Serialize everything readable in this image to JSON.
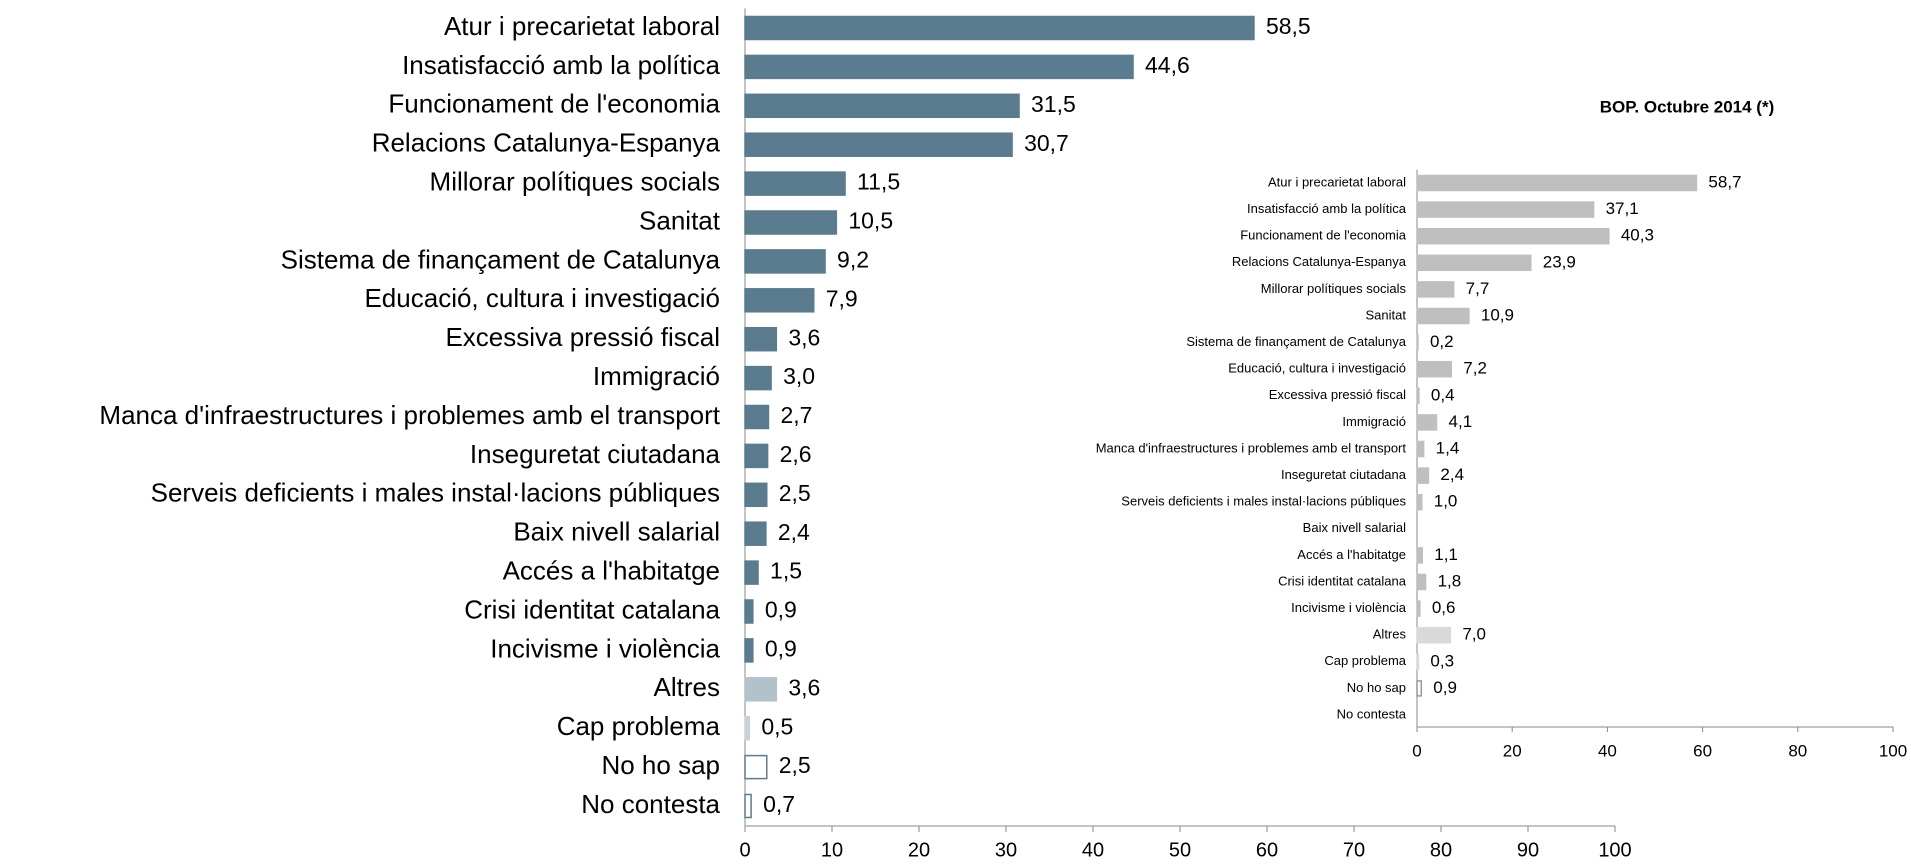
{
  "chart_data": [
    {
      "type": "bar",
      "orientation": "horizontal",
      "categories": [
        "Atur i precarietat laboral",
        "Insatisfacció amb la política",
        "Funcionament de l'economia",
        "Relacions Catalunya-Espanya",
        "Millorar polítiques socials",
        "Sanitat",
        "Sistema de finançament de Catalunya",
        "Educació, cultura i investigació",
        "Excessiva pressió fiscal",
        "Immigració",
        "Manca d'infraestructures i problemes amb el transport",
        "Inseguretat ciutadana",
        "Serveis deficients i males instal·lacions públiques",
        "Baix nivell salarial",
        "Accés a l'habitatge",
        "Crisi identitat catalana",
        "Incivisme i violència",
        "Altres",
        "Cap problema",
        "No ho sap",
        "No contesta"
      ],
      "values": [
        58.5,
        44.6,
        31.5,
        30.7,
        11.5,
        10.5,
        9.2,
        7.9,
        3.6,
        3.0,
        2.7,
        2.6,
        2.5,
        2.4,
        1.5,
        0.9,
        0.9,
        3.6,
        0.5,
        2.5,
        0.7
      ],
      "value_labels": [
        "58,5",
        "44,6",
        "31,5",
        "30,7",
        "11,5",
        "10,5",
        "9,2",
        "7,9",
        "3,6",
        "3,0",
        "2,7",
        "2,6",
        "2,5",
        "2,4",
        "1,5",
        "0,9",
        "0,9",
        "3,6",
        "0,5",
        "2,5",
        "0,7"
      ],
      "colors": [
        "#5b7b8e",
        "#5b7b8e",
        "#5b7b8e",
        "#5b7b8e",
        "#5b7b8e",
        "#5b7b8e",
        "#5b7b8e",
        "#5b7b8e",
        "#5b7b8e",
        "#5b7b8e",
        "#5b7b8e",
        "#5b7b8e",
        "#5b7b8e",
        "#5b7b8e",
        "#5b7b8e",
        "#5b7b8e",
        "#5b7b8e",
        "#b3c1cb",
        "#c9d1d7",
        "#ffffff",
        "#ffffff"
      ],
      "edge_colors": [
        "#5b7b8e",
        "#5b7b8e",
        "#5b7b8e",
        "#5b7b8e",
        "#5b7b8e",
        "#5b7b8e",
        "#5b7b8e",
        "#5b7b8e",
        "#5b7b8e",
        "#5b7b8e",
        "#5b7b8e",
        "#5b7b8e",
        "#5b7b8e",
        "#5b7b8e",
        "#5b7b8e",
        "#5b7b8e",
        "#5b7b8e",
        "#b3c1cb",
        "#c9d1d7",
        "#5b7b8e",
        "#5b7b8e"
      ],
      "xlim": [
        0,
        100
      ],
      "xticks": [
        0,
        10,
        20,
        30,
        40,
        50,
        60,
        70,
        80,
        90,
        100
      ]
    },
    {
      "type": "bar",
      "orientation": "horizontal",
      "title": "BOP. Octubre 2014 (*)",
      "categories": [
        "Atur i precarietat laboral",
        "Insatisfacció amb la política",
        "Funcionament de l'economia",
        "Relacions Catalunya-Espanya",
        "Millorar polítiques socials",
        "Sanitat",
        "Sistema de finançament de Catalunya",
        "Educació, cultura i investigació",
        "Excessiva pressió fiscal",
        "Immigració",
        "Manca d'infraestructures i problemes amb el transport",
        "Inseguretat ciutadana",
        "Serveis deficients i males instal·lacions públiques",
        "Baix nivell salarial",
        "Accés a l'habitatge",
        "Crisi identitat catalana",
        "Incivisme i violència",
        "Altres",
        "Cap problema",
        "No ho sap",
        "No contesta"
      ],
      "values": [
        58.7,
        37.1,
        40.3,
        23.9,
        7.7,
        10.9,
        0.2,
        7.2,
        0.4,
        4.1,
        1.4,
        2.4,
        1.0,
        null,
        1.1,
        1.8,
        0.6,
        7.0,
        0.3,
        0.9,
        null
      ],
      "value_labels": [
        "58,7",
        "37,1",
        "40,3",
        "23,9",
        "7,7",
        "10,9",
        "0,2",
        "7,2",
        "0,4",
        "4,1",
        "1,4",
        "2,4",
        "1,0",
        null,
        "1,1",
        "1,8",
        "0,6",
        "7,0",
        "0,3",
        "0,9",
        null
      ],
      "colors": [
        "#bfbfbf",
        "#bfbfbf",
        "#bfbfbf",
        "#bfbfbf",
        "#bfbfbf",
        "#bfbfbf",
        "#bfbfbf",
        "#bfbfbf",
        "#bfbfbf",
        "#bfbfbf",
        "#bfbfbf",
        "#bfbfbf",
        "#bfbfbf",
        "#bfbfbf",
        "#bfbfbf",
        "#bfbfbf",
        "#bfbfbf",
        "#d9d9d9",
        "#d9d9d9",
        "#ffffff",
        "#ffffff"
      ],
      "edge_colors": [
        "#bfbfbf",
        "#bfbfbf",
        "#bfbfbf",
        "#bfbfbf",
        "#bfbfbf",
        "#bfbfbf",
        "#bfbfbf",
        "#bfbfbf",
        "#bfbfbf",
        "#bfbfbf",
        "#bfbfbf",
        "#bfbfbf",
        "#bfbfbf",
        "#bfbfbf",
        "#bfbfbf",
        "#bfbfbf",
        "#bfbfbf",
        "#d9d9d9",
        "#d9d9d9",
        "#999999",
        "#999999"
      ],
      "xlim": [
        0,
        100
      ],
      "xticks": [
        0,
        20,
        40,
        60,
        80,
        100
      ]
    }
  ]
}
